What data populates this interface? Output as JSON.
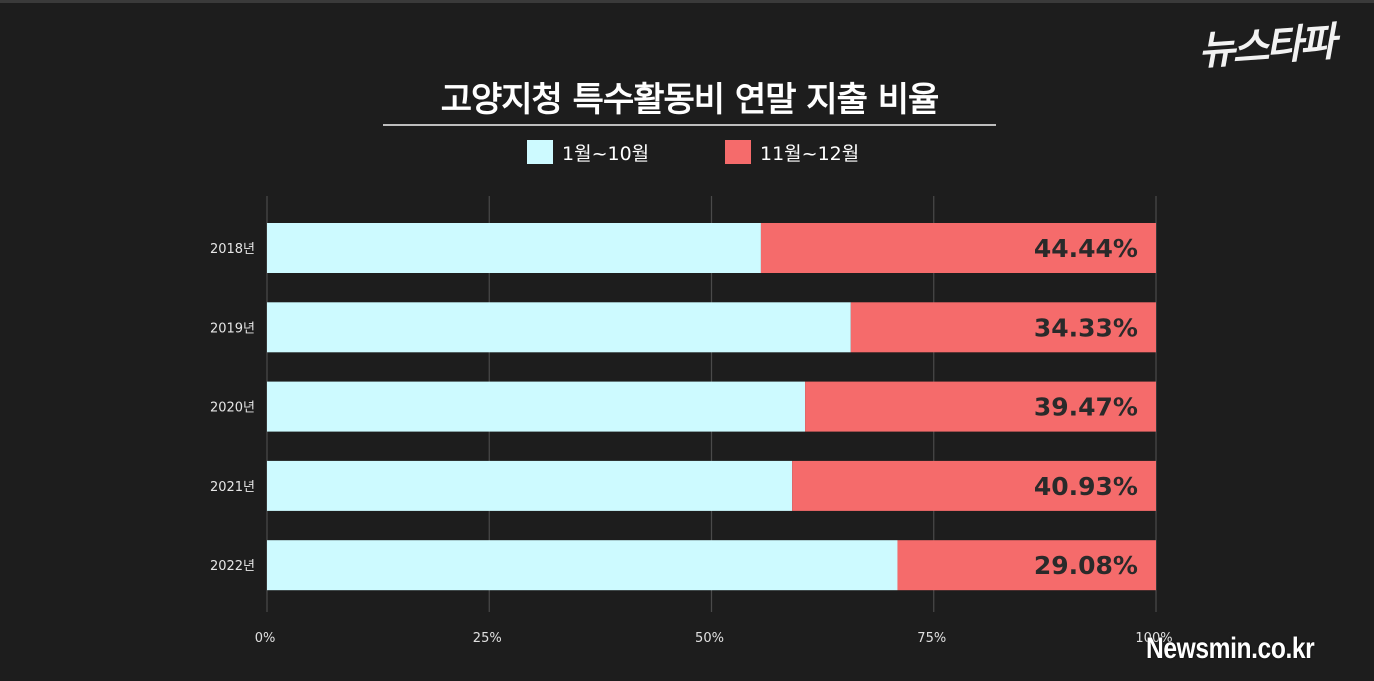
{
  "logo": {
    "text": "뉴스타파"
  },
  "watermark": {
    "text": "Newsmin.co.kr"
  },
  "colors": {
    "background": "#1d1d1d",
    "series_1": "#cdfaff",
    "series_2": "#f56b6b",
    "grid": "#4a4a4a",
    "value_label": "#2a2a2a"
  },
  "chart_data": {
    "type": "bar",
    "orientation": "horizontal",
    "stacked": "percent",
    "title": "고양지청 특수활동비 연말 지출 비율",
    "categories": [
      "2018년",
      "2019년",
      "2020년",
      "2021년",
      "2022년"
    ],
    "series": [
      {
        "name": "1월~10월",
        "values": [
          55.56,
          65.67,
          60.53,
          59.07,
          70.92
        ]
      },
      {
        "name": "11월~12월",
        "values": [
          44.44,
          34.33,
          39.47,
          40.93,
          29.08
        ]
      }
    ],
    "data_labels": [
      "44.44%",
      "34.33%",
      "39.47%",
      "40.93%",
      "29.08%"
    ],
    "x_ticks": [
      "0%",
      "25%",
      "50%",
      "75%",
      "100%"
    ],
    "xlim": [
      0,
      100
    ],
    "grid": true,
    "legend_position": "top"
  }
}
